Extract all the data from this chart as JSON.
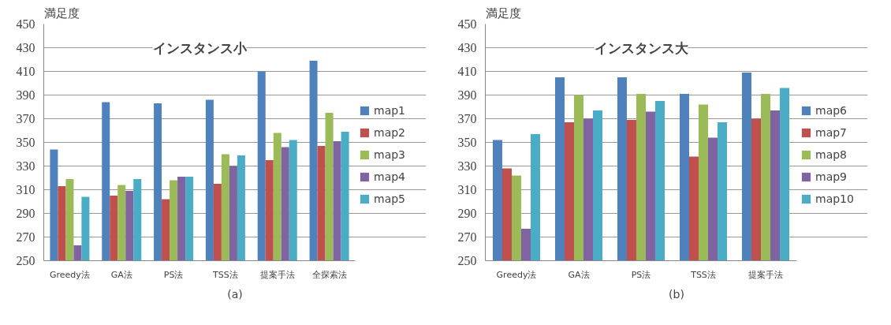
{
  "chart_data": [
    {
      "type": "bar",
      "title": "インスタンス小",
      "ylabel": "満足度",
      "annotations": [
        "(a)"
      ],
      "categories": [
        "Greedy法",
        "GA法",
        "PS法",
        "TSS法",
        "提案手法",
        "全探索法"
      ],
      "ylim": [
        250,
        450
      ],
      "yticks": [
        250,
        270,
        290,
        310,
        330,
        350,
        370,
        390,
        410,
        430,
        450
      ],
      "grid": "y",
      "legend": "right",
      "series": [
        {
          "name": "map1",
          "color": "#4f81bd",
          "values": [
            344,
            384,
            383,
            386,
            410,
            419
          ]
        },
        {
          "name": "map2",
          "color": "#c0504d",
          "values": [
            313,
            305,
            302,
            315,
            335,
            347
          ]
        },
        {
          "name": "map3",
          "color": "#9bbb59",
          "values": [
            319,
            314,
            318,
            340,
            358,
            375
          ]
        },
        {
          "name": "map4",
          "color": "#8064a2",
          "values": [
            263,
            309,
            321,
            330,
            346,
            351
          ]
        },
        {
          "name": "map5",
          "color": "#4bacc6",
          "values": [
            304,
            319,
            321,
            339,
            352,
            359
          ]
        }
      ]
    },
    {
      "type": "bar",
      "title": "インスタンス大",
      "ylabel": "満足度",
      "annotations": [
        "(b)"
      ],
      "categories": [
        "Greedy法",
        "GA法",
        "PS法",
        "TSS法",
        "提案手法"
      ],
      "ylim": [
        250,
        450
      ],
      "yticks": [
        250,
        270,
        290,
        310,
        330,
        350,
        370,
        390,
        410,
        430,
        450
      ],
      "grid": "y",
      "legend": "right",
      "series": [
        {
          "name": "map6",
          "color": "#4f81bd",
          "values": [
            352,
            405,
            405,
            391,
            409
          ]
        },
        {
          "name": "map7",
          "color": "#c0504d",
          "values": [
            328,
            367,
            369,
            338,
            370
          ]
        },
        {
          "name": "map8",
          "color": "#9bbb59",
          "values": [
            322,
            390,
            391,
            382,
            391
          ]
        },
        {
          "name": "map9",
          "color": "#8064a2",
          "values": [
            277,
            370,
            376,
            354,
            377
          ]
        },
        {
          "name": "map10",
          "color": "#4bacc6",
          "values": [
            357,
            377,
            385,
            367,
            396
          ]
        }
      ]
    }
  ]
}
